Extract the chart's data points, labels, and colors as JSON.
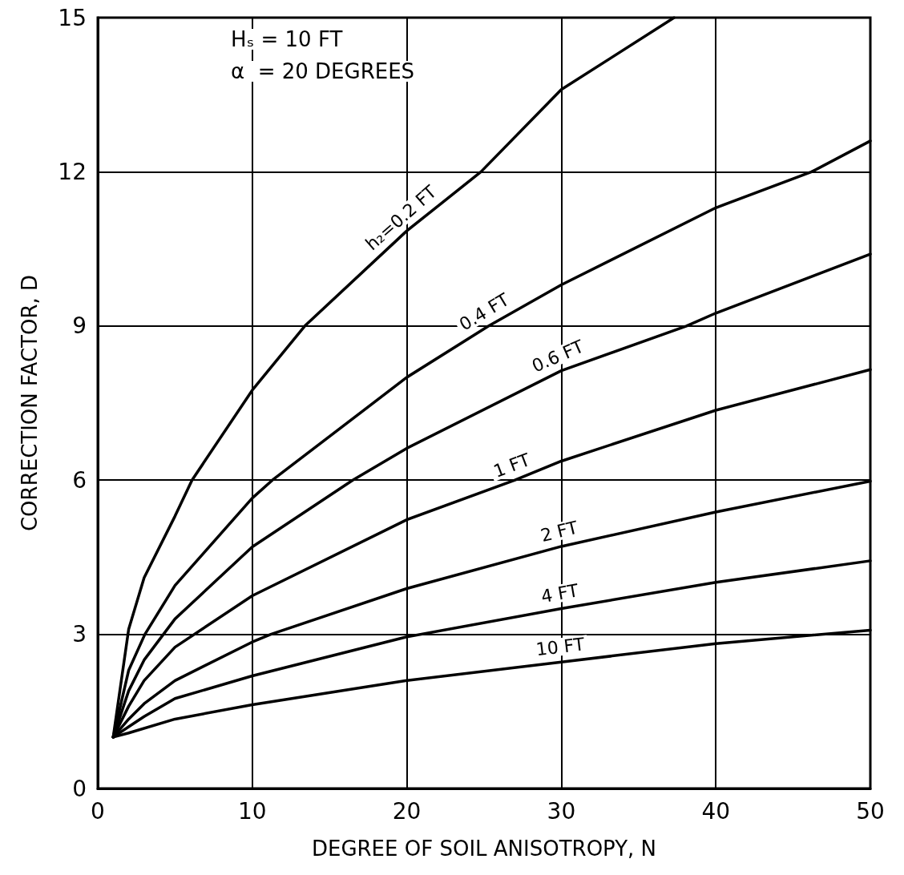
{
  "chart_data": {
    "type": "line",
    "xlabel": "DEGREE OF SOIL ANISOTROPY, N",
    "ylabel": "CORRECTION FACTOR, D",
    "annotations": [
      "Hₛ = 10 FT",
      "α  = 20 DEGREES"
    ],
    "xlim": [
      0,
      50
    ],
    "xticks": [
      0,
      10,
      20,
      30,
      40,
      50
    ],
    "ylim": [
      0,
      15
    ],
    "yticks": [
      0,
      3,
      6,
      9,
      12,
      15
    ],
    "grid": true,
    "legend": false,
    "marker": "none",
    "line_style": "solid",
    "series": [
      {
        "name": "h₂=0.2 FT",
        "color": "#000000",
        "x": [
          1,
          2,
          3,
          5,
          6.1,
          10,
          13.4,
          20,
          24.8,
          30,
          37.3
        ],
        "values": [
          1,
          3.1,
          4.1,
          5.3,
          6,
          7.75,
          9,
          10.85,
          12,
          13.6,
          15
        ]
      },
      {
        "name": "0.4 FT",
        "color": "#000000",
        "x": [
          1,
          2,
          3.05,
          5,
          10,
          11.3,
          20,
          25.3,
          30,
          40,
          46.2,
          50
        ],
        "values": [
          1,
          2.3,
          3,
          3.95,
          5.65,
          6,
          8,
          9,
          9.8,
          11.3,
          12,
          12.6
        ]
      },
      {
        "name": "0.6 FT",
        "color": "#000000",
        "x": [
          1,
          2,
          3,
          5,
          10,
          16.5,
          20,
          30,
          38.1,
          40,
          50
        ],
        "values": [
          1,
          1.9,
          2.5,
          3.3,
          4.7,
          6,
          6.62,
          8.13,
          9,
          9.25,
          10.4
        ]
      },
      {
        "name": "1 FT",
        "color": "#000000",
        "x": [
          1,
          2,
          3,
          5,
          10,
          20,
          27,
          30,
          40,
          50
        ],
        "values": [
          1,
          1.6,
          2.1,
          2.75,
          3.75,
          5.23,
          6,
          6.37,
          7.36,
          8.15
        ]
      },
      {
        "name": "2 FT",
        "color": "#000000",
        "x": [
          1,
          2,
          3,
          5,
          10,
          11.2,
          20,
          30,
          40,
          50
        ],
        "values": [
          1,
          1.35,
          1.65,
          2.1,
          2.85,
          3,
          3.89,
          4.71,
          5.38,
          5.98
        ]
      },
      {
        "name": "4 FT",
        "color": "#000000",
        "x": [
          1,
          2,
          3,
          5,
          10,
          20,
          30,
          40,
          50
        ],
        "values": [
          1,
          1.2,
          1.4,
          1.75,
          2.19,
          2.95,
          3.5,
          4.01,
          4.43
        ]
      },
      {
        "name": "10 FT",
        "color": "#000000",
        "x": [
          1,
          2,
          5,
          10,
          20,
          30,
          40,
          50
        ],
        "values": [
          1,
          1.08,
          1.35,
          1.63,
          2.1,
          2.46,
          2.82,
          3.08
        ]
      }
    ]
  }
}
